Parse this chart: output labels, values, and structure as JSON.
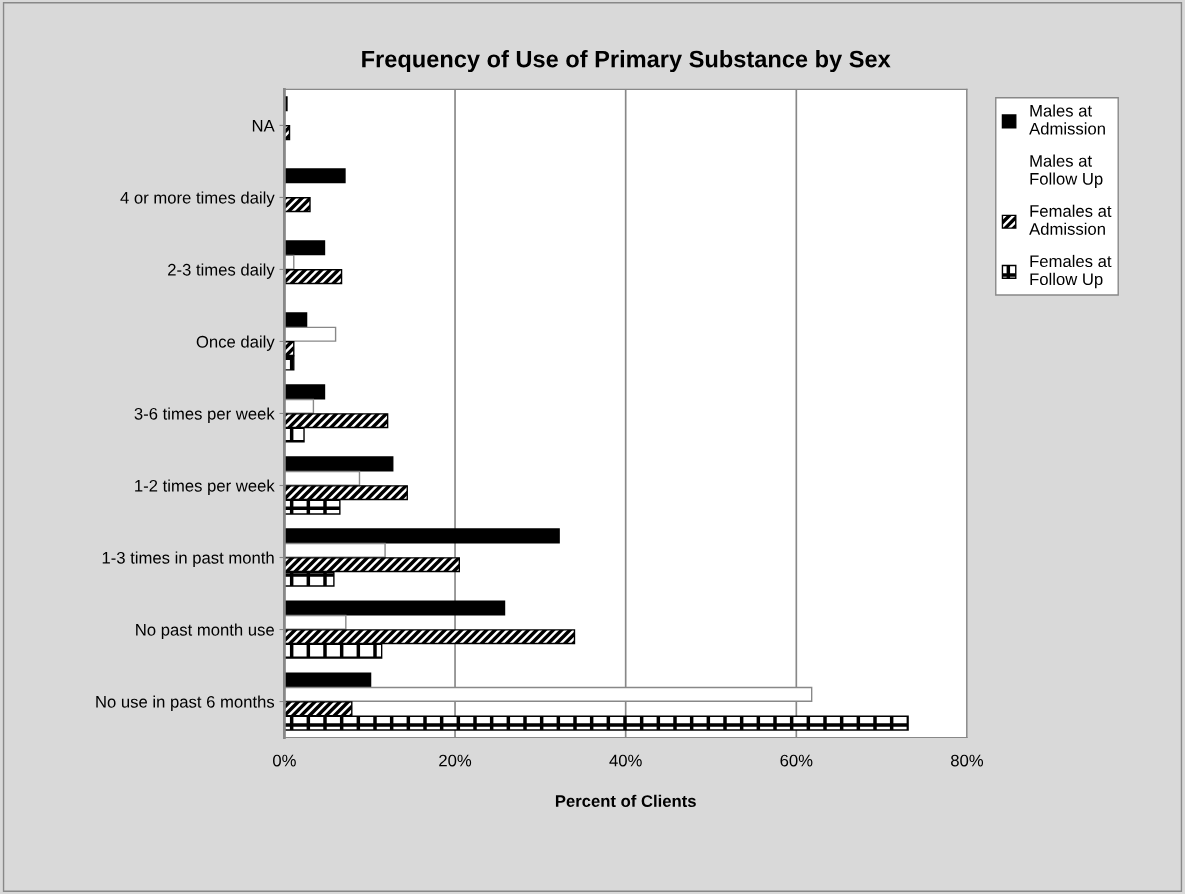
{
  "chart_data": {
    "type": "bar",
    "orientation": "horizontal",
    "title": "Frequency of Use of Primary Substance by Sex",
    "xlabel": "Percent of Clients",
    "categories": [
      "NA",
      "4 or more times daily",
      "2-3 times daily",
      "Once daily",
      "3-6 times per week",
      "1-2 times per week",
      "1-3 times in past month",
      "No past month use",
      "No use in past 6 months"
    ],
    "series": [
      {
        "name": "Males at Admission",
        "color": "#000000",
        "values": [
          0.3,
          7.1,
          4.7,
          2.6,
          4.7,
          12.7,
          32.2,
          25.8,
          10.1
        ]
      },
      {
        "name": "Males at Follow Up",
        "color": "#ffffff",
        "values": [
          0,
          0,
          1.1,
          6.0,
          3.4,
          8.8,
          11.8,
          7.2,
          61.8
        ]
      },
      {
        "name": "Females at Admission",
        "color": "#000000",
        "values": [
          0.6,
          3.0,
          6.7,
          1.1,
          12.1,
          14.4,
          20.5,
          34.0,
          7.9
        ]
      },
      {
        "name": "Females at Follow Up",
        "color": "#000000",
        "values": [
          0,
          0,
          0,
          1.1,
          2.3,
          6.5,
          5.8,
          11.4,
          73.1
        ]
      }
    ],
    "xlim": [
      0,
      80
    ],
    "xticks": [
      {
        "value": 0,
        "label": "0%"
      },
      {
        "value": 20,
        "label": "20%"
      },
      {
        "value": 40,
        "label": "40%"
      },
      {
        "value": 60,
        "label": "60%"
      },
      {
        "value": 80,
        "label": "80%"
      }
    ],
    "grid": "x",
    "legend": "right"
  }
}
